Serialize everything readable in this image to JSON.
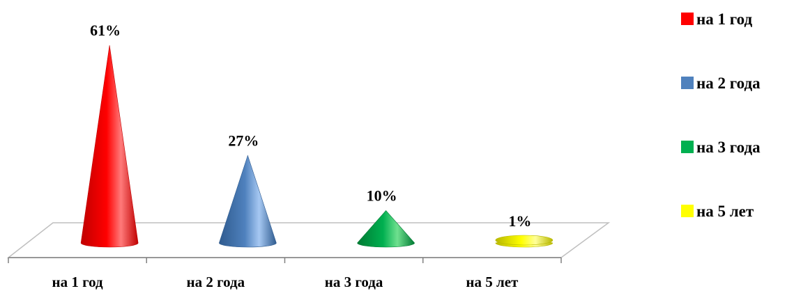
{
  "chart_data": {
    "type": "bar",
    "style": "3d-cone",
    "categories": [
      "на 1 год",
      "на 2 года",
      "на 3 года",
      "на 5 лет"
    ],
    "values": [
      61,
      27,
      10,
      1
    ],
    "value_labels": [
      "61%",
      "27%",
      "10%",
      "1%"
    ],
    "unit": "%",
    "title": "",
    "xlabel": "",
    "ylabel": "",
    "ylim": [
      0,
      61
    ],
    "grid": false,
    "legend": {
      "placement": "right",
      "entries": [
        "на 1 год",
        "на 2 года",
        "на 3 года",
        "на 5 лет"
      ]
    },
    "colors": [
      "#ff0000",
      "#4f81bd",
      "#00b050",
      "#ffff00"
    ],
    "cone_colors": {
      "light": [
        "#ff7a7a",
        "#a6c8f2",
        "#6fe08f",
        "#ffff99"
      ],
      "dark": [
        "#c00000",
        "#2f5b8f",
        "#007a33",
        "#b8b800"
      ]
    }
  }
}
